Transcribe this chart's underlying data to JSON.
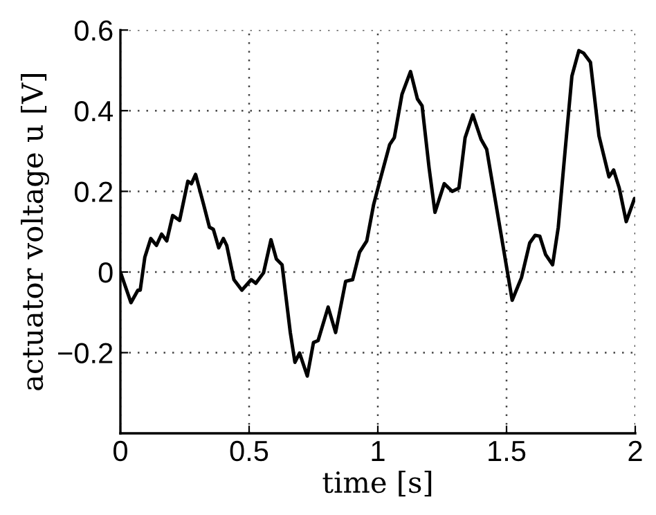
{
  "chart_data": {
    "type": "line",
    "xlabel": "time [s]",
    "ylabel": "actuator voltage u [V]",
    "xlim": [
      0,
      2
    ],
    "xticks": [
      0,
      0.5,
      1,
      1.5,
      2
    ],
    "ylim": [
      -0.4,
      0.6
    ],
    "yticks": [
      {
        "value": -0.2,
        "label": "−0.2"
      },
      0,
      0.2,
      0.4,
      0.6
    ],
    "grid": true,
    "marker": "none",
    "line_style": "solid",
    "series": [
      {
        "color": "#000000",
        "x": [
          0,
          0.041,
          0.068,
          0.077,
          0.095,
          0.118,
          0.14,
          0.16,
          0.18,
          0.203,
          0.23,
          0.262,
          0.276,
          0.292,
          0.323,
          0.346,
          0.361,
          0.382,
          0.4,
          0.413,
          0.441,
          0.472,
          0.508,
          0.526,
          0.556,
          0.585,
          0.606,
          0.628,
          0.66,
          0.678,
          0.696,
          0.726,
          0.75,
          0.768,
          0.807,
          0.836,
          0.875,
          0.902,
          0.929,
          0.957,
          0.984,
          1.01,
          1.046,
          1.064,
          1.094,
          1.127,
          1.154,
          1.172,
          1.199,
          1.222,
          1.258,
          1.289,
          1.315,
          1.339,
          1.369,
          1.401,
          1.423,
          1.477,
          1.522,
          1.558,
          1.59,
          1.611,
          1.629,
          1.652,
          1.679,
          1.701,
          1.728,
          1.754,
          1.781,
          1.799,
          1.826,
          1.859,
          1.898,
          1.916,
          1.938,
          1.965,
          1.997
        ],
        "values": [
          0,
          -0.076,
          -0.045,
          -0.045,
          0.037,
          0.083,
          0.066,
          0.094,
          0.077,
          0.14,
          0.128,
          0.225,
          0.219,
          0.242,
          0.168,
          0.111,
          0.106,
          0.06,
          0.083,
          0.066,
          -0.019,
          -0.045,
          -0.019,
          -0.028,
          -0.002,
          0.08,
          0.032,
          0.018,
          -0.15,
          -0.224,
          -0.201,
          -0.258,
          -0.175,
          -0.17,
          -0.087,
          -0.15,
          -0.023,
          -0.019,
          0.049,
          0.077,
          0.168,
          0.231,
          0.316,
          0.333,
          0.441,
          0.497,
          0.429,
          0.412,
          0.259,
          0.148,
          0.219,
          0.2,
          0.208,
          0.333,
          0.39,
          0.329,
          0.304,
          0.1,
          -0.07,
          -0.014,
          0.072,
          0.091,
          0.089,
          0.043,
          0.018,
          0.111,
          0.304,
          0.486,
          0.549,
          0.543,
          0.52,
          0.338,
          0.236,
          0.253,
          0.208,
          0.125,
          0.182
        ]
      }
    ]
  }
}
